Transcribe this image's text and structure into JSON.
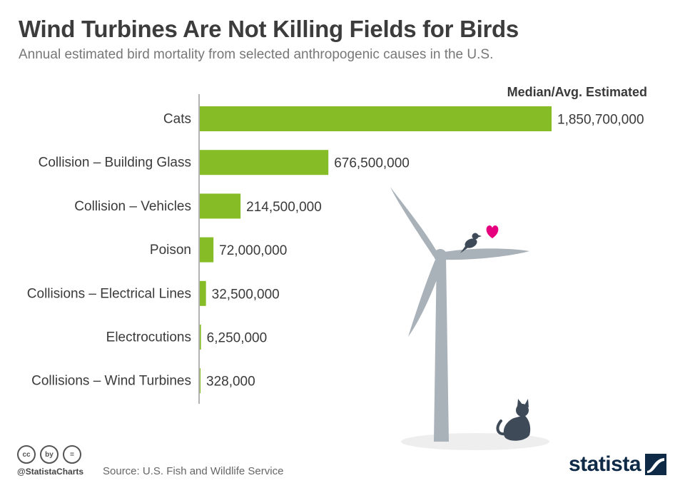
{
  "header": {
    "title": "Wind Turbines Are Not Killing Fields for Birds",
    "subtitle": "Annual estimated bird mortality from selected anthropogenic causes in the U.S.",
    "column_header": "Median/Avg. Estimated"
  },
  "chart_data": {
    "type": "bar",
    "orientation": "horizontal",
    "categories": [
      "Cats",
      "Collision – Building Glass",
      "Collision – Vehicles",
      "Poison",
      "Collisions – Electrical Lines",
      "Electrocutions",
      "Collisions – Wind Turbines"
    ],
    "values": [
      1850700000,
      676500000,
      214500000,
      72000000,
      32500000,
      6250000,
      328000
    ],
    "value_labels": [
      "1,850,700,000",
      "676,500,000",
      "214,500,000",
      "72,000,000",
      "32,500,000",
      "6,250,000",
      "328,000"
    ],
    "bar_color": "#86bc25",
    "xlim": [
      0,
      1850700000
    ],
    "grid": false
  },
  "footer": {
    "cc_icons": [
      "cc",
      "by",
      "="
    ],
    "handle": "@StatistaCharts",
    "source": "Source: U.S. Fish and Wildlife Service",
    "brand": "statista"
  },
  "illustration": {
    "icons": [
      "wind-turbine-icon",
      "bird-icon",
      "heart-icon",
      "cat-icon"
    ],
    "turbine_color": "#a9b1b9",
    "animal_color": "#3f4a59",
    "heart_color": "#e6007e"
  }
}
